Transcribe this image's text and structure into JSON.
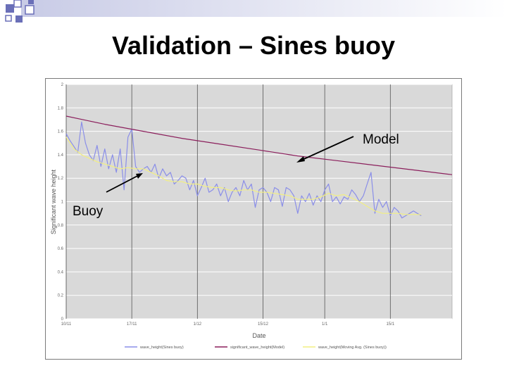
{
  "slide": {
    "title": "Validation – Sines buoy",
    "annotations": {
      "model": "Model",
      "buoy": "Buoy"
    }
  },
  "colors": {
    "buoy": "#8a8ee8",
    "model": "#8b1f5c",
    "moving_avg": "#f2ef82",
    "plot_bg": "#d9d9d9"
  },
  "chart_data": {
    "type": "line",
    "xlabel": "Date",
    "ylabel": "Significant wave height",
    "xlim": [
      0,
      100
    ],
    "ylim": [
      0,
      2
    ],
    "yticks": [
      "0",
      "0.2",
      "0.4",
      "0.6",
      "0.8",
      "1",
      "1.2",
      "1.4",
      "1.6",
      "1.8",
      "2"
    ],
    "xticks": [
      {
        "at": 0,
        "label": "10/11"
      },
      {
        "at": 17,
        "label": "17/11"
      },
      {
        "at": 34,
        "label": "1/12"
      },
      {
        "at": 51,
        "label": "15/12"
      },
      {
        "at": 67,
        "label": "1/1"
      },
      {
        "at": 84,
        "label": "15/1"
      }
    ],
    "series": [
      {
        "name": "wave_height(Sines buoy)",
        "x": [
          0,
          1,
          2,
          3,
          4,
          5,
          6,
          7,
          8,
          9,
          10,
          11,
          12,
          13,
          14,
          15,
          16,
          17,
          18,
          19,
          20,
          21,
          22,
          23,
          24,
          25,
          26,
          27,
          28,
          29,
          30,
          31,
          32,
          33,
          34,
          35,
          36,
          37,
          38,
          39,
          40,
          41,
          42,
          43,
          44,
          45,
          46,
          47,
          48,
          49,
          50,
          51,
          52,
          53,
          54,
          55,
          56,
          57,
          58,
          59,
          60,
          61,
          62,
          63,
          64,
          65,
          66,
          67,
          68,
          69,
          70,
          71,
          72,
          73,
          74,
          75,
          76,
          77,
          78,
          79,
          80,
          81,
          82,
          83,
          84,
          85,
          86,
          87,
          88,
          89,
          90,
          91,
          92
        ],
        "values": [
          1.58,
          1.52,
          1.47,
          1.42,
          1.68,
          1.5,
          1.4,
          1.35,
          1.48,
          1.3,
          1.45,
          1.28,
          1.4,
          1.25,
          1.45,
          1.1,
          1.55,
          1.62,
          1.3,
          1.25,
          1.28,
          1.3,
          1.25,
          1.32,
          1.2,
          1.28,
          1.22,
          1.25,
          1.15,
          1.18,
          1.22,
          1.2,
          1.1,
          1.18,
          1.05,
          1.12,
          1.2,
          1.08,
          1.1,
          1.15,
          1.05,
          1.12,
          1.0,
          1.08,
          1.12,
          1.05,
          1.18,
          1.1,
          1.15,
          0.95,
          1.1,
          1.12,
          1.08,
          1.0,
          1.12,
          1.1,
          0.96,
          1.12,
          1.1,
          1.05,
          0.9,
          1.05,
          1.0,
          1.07,
          0.97,
          1.05,
          1.0,
          1.1,
          1.15,
          1.0,
          1.04,
          0.98,
          1.04,
          1.02,
          1.1,
          1.06,
          1.0,
          1.05,
          1.15,
          1.25,
          0.9,
          1.02,
          0.95,
          1.0,
          0.88,
          0.95,
          0.92,
          0.86,
          0.88,
          0.9,
          0.92,
          0.9,
          0.88
        ]
      },
      {
        "name": "significant_wave_height(Model)",
        "x": [
          0,
          10,
          20,
          30,
          40,
          50,
          60,
          70,
          80,
          90,
          100
        ],
        "values": [
          1.73,
          1.66,
          1.6,
          1.54,
          1.49,
          1.44,
          1.39,
          1.35,
          1.31,
          1.27,
          1.23
        ]
      },
      {
        "name": "wave_height(Moving Avg. (Sines buoy))",
        "x": [
          0,
          2,
          4,
          6,
          8,
          10,
          12,
          14,
          16,
          18,
          20,
          22,
          24,
          26,
          28,
          30,
          32,
          34,
          36,
          38,
          40,
          42,
          44,
          46,
          48,
          50,
          52,
          54,
          56,
          58,
          60,
          62,
          64,
          66,
          68,
          70,
          72,
          74,
          76,
          78,
          80,
          82,
          84,
          86,
          88,
          90,
          92
        ],
        "values": [
          1.55,
          1.45,
          1.4,
          1.37,
          1.34,
          1.32,
          1.3,
          1.28,
          1.29,
          1.28,
          1.28,
          1.25,
          1.22,
          1.18,
          1.17,
          1.17,
          1.15,
          1.15,
          1.13,
          1.12,
          1.12,
          1.1,
          1.09,
          1.1,
          1.1,
          1.08,
          1.08,
          1.07,
          1.06,
          1.05,
          1.02,
          1.02,
          1.02,
          1.04,
          1.07,
          1.05,
          1.06,
          1.03,
          1.0,
          0.96,
          0.92,
          0.9,
          0.9,
          0.9,
          0.89,
          0.89,
          0.89
        ]
      }
    ],
    "legend": [
      "wave_height(Sines buoy)",
      "significant_wave_height(Model)",
      "wave_height(Moving Avg. (Sines buoy))"
    ],
    "legend_position": "bottom",
    "grid": true
  }
}
